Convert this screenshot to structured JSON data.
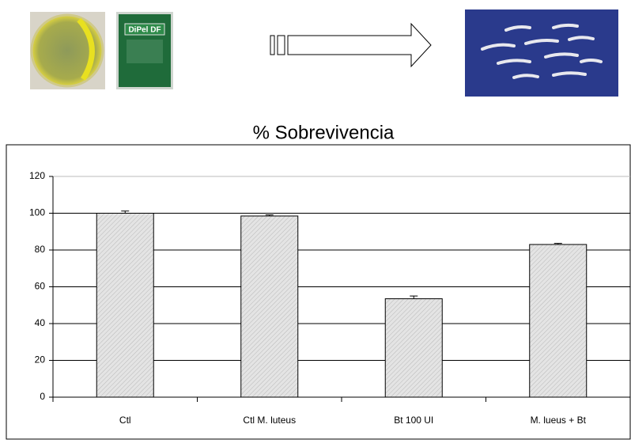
{
  "illustration": {
    "package_label": "DiPel DF"
  },
  "chart_data": {
    "type": "bar",
    "title": "% Sobrevivencia",
    "categories": [
      "Ctl",
      "Ctl M. luteus",
      "Bt 100 UI",
      "M. lueus + Bt"
    ],
    "values": [
      100,
      98.5,
      53.5,
      83
    ],
    "errors": [
      1.2,
      0.6,
      1.5,
      0.6
    ],
    "color": "#d9d9d9",
    "ylim": [
      0,
      120
    ],
    "yticks": [
      0,
      20,
      40,
      60,
      80,
      100,
      120
    ],
    "grid": true
  }
}
